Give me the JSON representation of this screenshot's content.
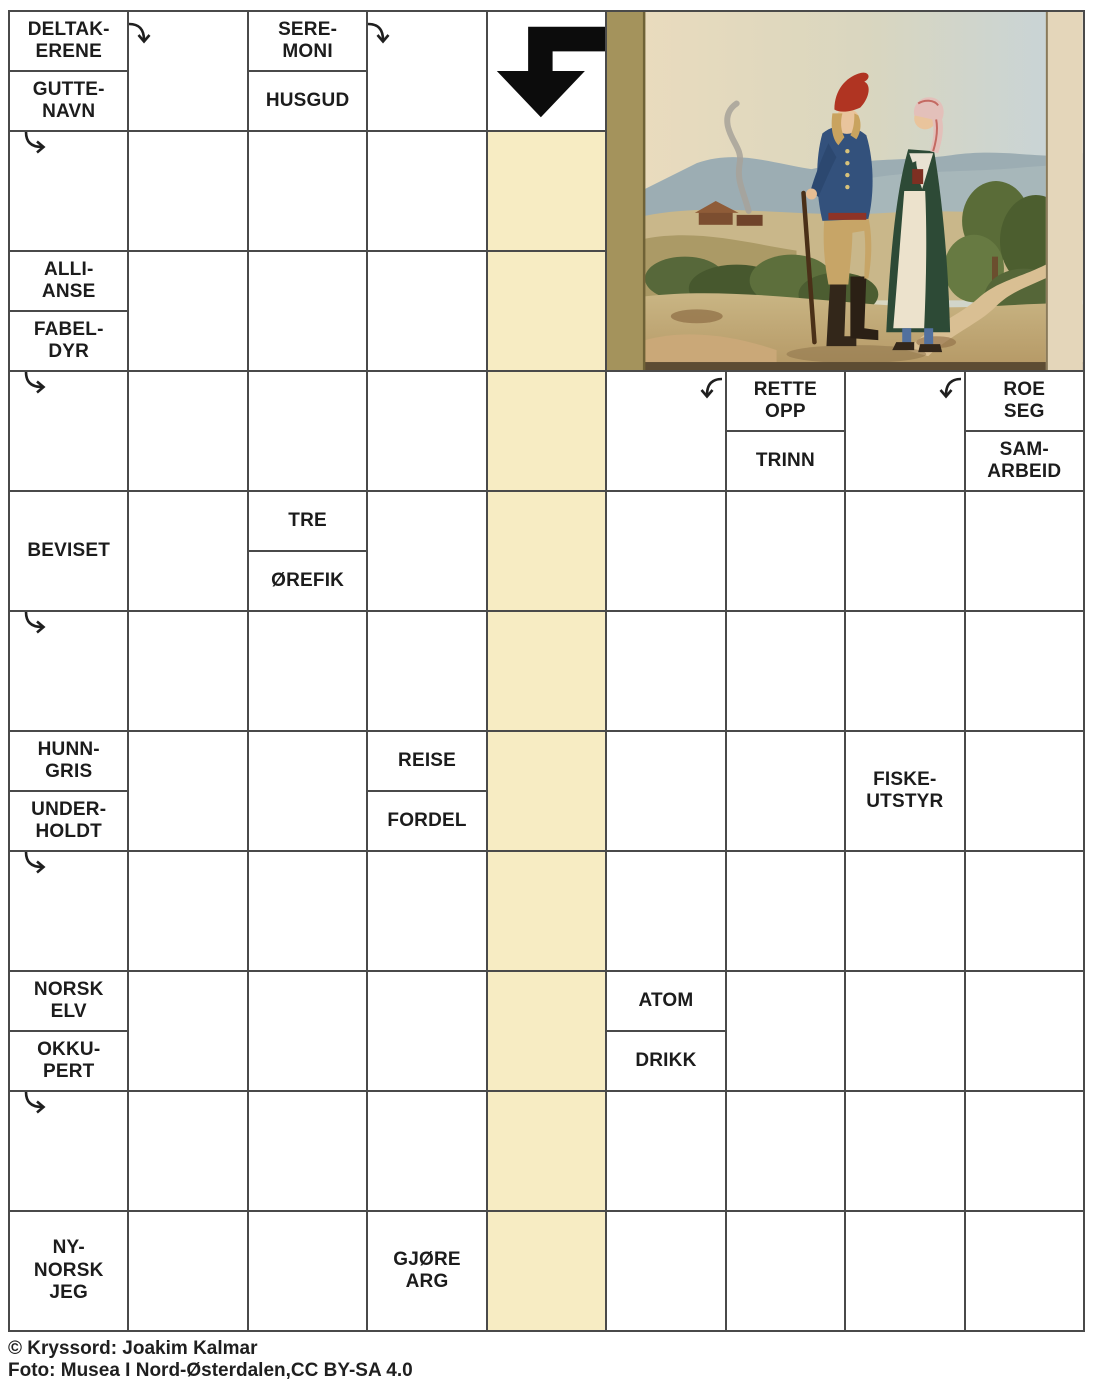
{
  "colors": {
    "highlight": "#f7ecc3",
    "grid_line": "#4a4a4a",
    "clue_text": "#1c1c1c",
    "arrow_black": "#0c0c0c",
    "photo_left_strip": "#a4935c",
    "photo_right_strip": "#e4d6ba"
  },
  "grid": {
    "rows": 11,
    "cols": 9,
    "highlight_column": 5,
    "highlight_row_start": 2,
    "highlight_row_end": 11,
    "image_span": {
      "row": 1,
      "col": 6,
      "row_span": 3,
      "col_span": 4
    },
    "cells": [
      {
        "row": 1,
        "col": 1,
        "type": "split",
        "top": "DELTAK-\nERENE",
        "bottom": "GUTTE-\nNAVN"
      },
      {
        "row": 1,
        "col": 2,
        "type": "empty",
        "arrow": "down"
      },
      {
        "row": 1,
        "col": 3,
        "type": "split",
        "top": "SERE-\nMONI",
        "bottom": "HUSGUD"
      },
      {
        "row": 1,
        "col": 4,
        "type": "empty",
        "arrow": "down"
      },
      {
        "row": 1,
        "col": 5,
        "type": "solution"
      },
      {
        "row": 2,
        "col": 1,
        "type": "empty",
        "arrow": "right"
      },
      {
        "row": 3,
        "col": 1,
        "type": "split",
        "top": "ALLI-\nANSE",
        "bottom": "FABEL-\nDYR"
      },
      {
        "row": 4,
        "col": 1,
        "type": "empty",
        "arrow": "right"
      },
      {
        "row": 4,
        "col": 6,
        "type": "empty",
        "arrow": "downleft"
      },
      {
        "row": 4,
        "col": 7,
        "type": "split",
        "top": "RETTE\nOPP",
        "bottom": "TRINN"
      },
      {
        "row": 4,
        "col": 8,
        "type": "empty",
        "arrow": "downleft"
      },
      {
        "row": 4,
        "col": 9,
        "type": "split",
        "top": "ROE\nSEG",
        "bottom": "SAM-\nARBEID"
      },
      {
        "row": 5,
        "col": 1,
        "type": "clue",
        "label": "BEVISET"
      },
      {
        "row": 5,
        "col": 3,
        "type": "split",
        "top": "TRE",
        "bottom": "ØREFIK"
      },
      {
        "row": 6,
        "col": 1,
        "type": "empty",
        "arrow": "right"
      },
      {
        "row": 7,
        "col": 1,
        "type": "split",
        "top": "HUNN-\nGRIS",
        "bottom": "UNDER-\nHOLDT"
      },
      {
        "row": 7,
        "col": 4,
        "type": "split",
        "top": "REISE",
        "bottom": "FORDEL"
      },
      {
        "row": 7,
        "col": 8,
        "type": "clue",
        "label": "FISKE-\nUTSTYR"
      },
      {
        "row": 8,
        "col": 1,
        "type": "empty",
        "arrow": "right"
      },
      {
        "row": 9,
        "col": 1,
        "type": "split",
        "top": "NORSK\nELV",
        "bottom": "OKKU-\nPERT"
      },
      {
        "row": 9,
        "col": 6,
        "type": "split",
        "top": "ATOM",
        "bottom": "DRIKK"
      },
      {
        "row": 10,
        "col": 1,
        "type": "empty",
        "arrow": "right"
      },
      {
        "row": 11,
        "col": 1,
        "type": "clue",
        "label": "NY-\nNORSK\nJEG"
      },
      {
        "row": 11,
        "col": 4,
        "type": "clue",
        "label": "GJØRE\nARG"
      }
    ]
  },
  "image": {
    "name": "folk-costume-painting",
    "description": "Painting of a man and woman in Norwegian folk costume walking on a country path"
  },
  "credits": {
    "line1": "© Kryssord: Joakim Kalmar",
    "line2": "Foto: Musea I Nord-Østerdalen,CC BY-SA 4.0"
  }
}
